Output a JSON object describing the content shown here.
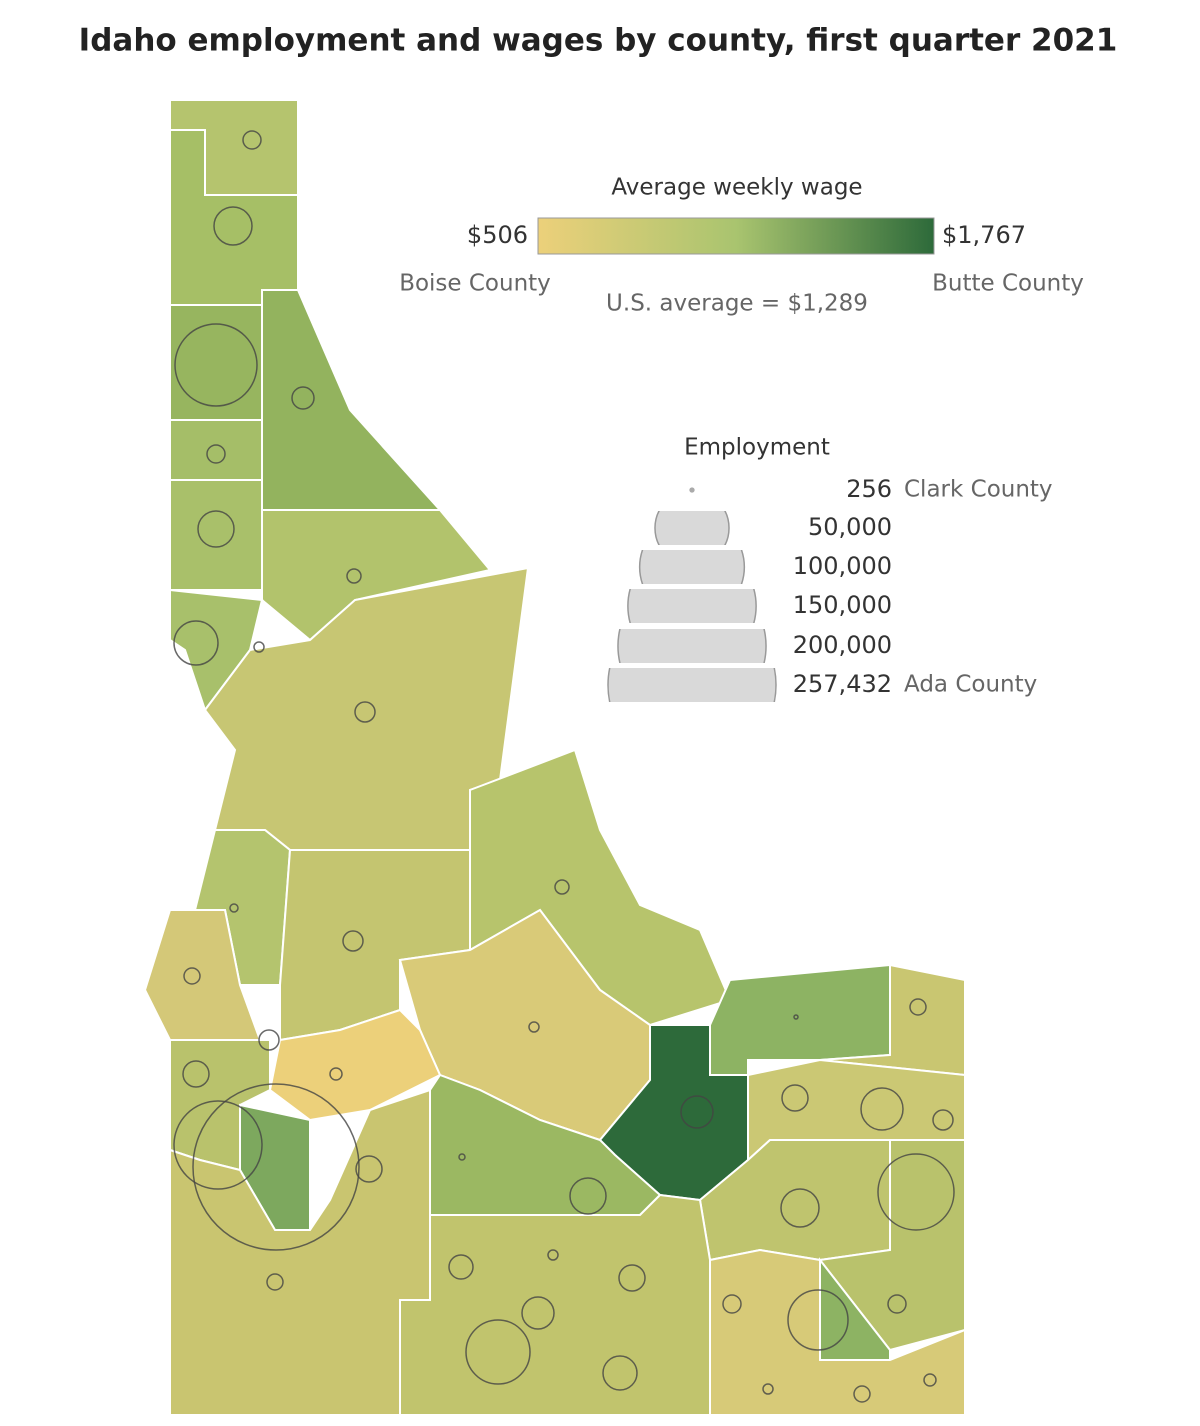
{
  "title": "Idaho employment and wages by county, first quarter 2021",
  "wage_legend": {
    "title": "Average weekly wage",
    "min": {
      "value": 506,
      "label": "$506",
      "county": "Boise County"
    },
    "max": {
      "value": 1767,
      "label": "$1,767",
      "county": "Butte County"
    },
    "us_average": "U.S. average = $1,289",
    "colors": [
      "#ecd07a",
      "#a9c46f",
      "#2d6a3a"
    ]
  },
  "employment_legend": {
    "title": "Employment",
    "items": [
      {
        "value": 256,
        "county": "Clark County"
      },
      {
        "value": 50000,
        "label": "50,000"
      },
      {
        "value": 100000,
        "label": "100,000"
      },
      {
        "value": 150000,
        "label": "150,000"
      },
      {
        "value": 200000,
        "label": "200,000"
      },
      {
        "value": 257432,
        "label": "257,432",
        "county": "Ada County"
      }
    ]
  }
}
